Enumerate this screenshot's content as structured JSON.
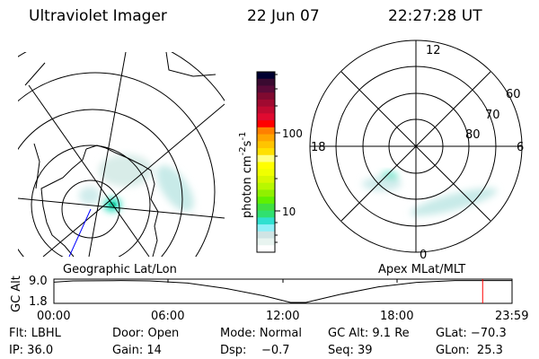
{
  "header": {
    "title": "Ultraviolet Imager",
    "date": "22 Jun 07",
    "time": "22:27:28 UT"
  },
  "left_map": {
    "label": "Geographic Lat/Lon"
  },
  "right_map": {
    "label": "Apex MLat/MLT",
    "mlt_labels": {
      "top": "12",
      "bottom": "0",
      "left": "18",
      "right": "6"
    },
    "lat_labels": [
      "60",
      "70",
      "80"
    ]
  },
  "colorbar": {
    "unit_label": "photon cm",
    "unit_sup1": "-2",
    "unit_mid": "s",
    "unit_sup2": "-1",
    "tick_labels": [
      "100",
      "10"
    ],
    "scale": "log",
    "colors": [
      "#000030",
      "#3a0a30",
      "#5a0a38",
      "#800a30",
      "#a00a30",
      "#c00a30",
      "#e00a30",
      "#ff0000",
      "#ff8000",
      "#ffa500",
      "#ffc400",
      "#ffe000",
      "#ffff80",
      "#ffff00",
      "#f0ff00",
      "#d8f800",
      "#b8f800",
      "#90f000",
      "#60f000",
      "#40e040",
      "#30e070",
      "#30e0d0",
      "#90f0f8",
      "#d0e4e4",
      "#e8f4f0",
      "#ffffff"
    ]
  },
  "chart_data": {
    "type": "line",
    "ylabel": "GC Alt",
    "ytick_labels": [
      "9.0",
      "1.8"
    ],
    "xtick_labels": [
      "00:00",
      "06:00",
      "12:00",
      "18:00",
      "23:59"
    ],
    "xlim_hours": [
      0,
      24
    ],
    "ylim": [
      1.8,
      9.0
    ],
    "x_hours": [
      0,
      1,
      3.5,
      5,
      7,
      9,
      11,
      12.4,
      13.2,
      15,
      17,
      19,
      21,
      24
    ],
    "y": [
      8.6,
      9.0,
      9.1,
      9.0,
      8.3,
      6.5,
      4.0,
      1.8,
      1.8,
      4.5,
      7.0,
      8.5,
      9.1,
      9.1
    ],
    "current_time_hours": 22.46,
    "current_time_color": "#ff0000"
  },
  "info": {
    "row1": [
      "Flt: LBHL",
      "Door: Open",
      "Mode: Normal",
      "GC Alt: 9.1 Re",
      "GLat: −70.3"
    ],
    "row2": [
      "IP: 36.0",
      "Gain: 14",
      "Dsp:    −0.7",
      "Seq: 39",
      "GLon:  25.3"
    ]
  }
}
